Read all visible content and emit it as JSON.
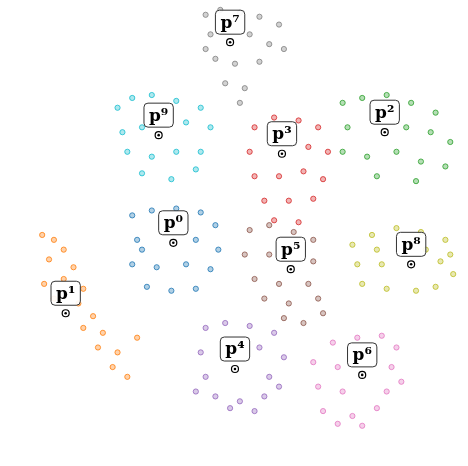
{
  "chart_data": {
    "type": "scatter",
    "xlim": [
      0,
      468
    ],
    "ylim": [
      0,
      466
    ],
    "grid": false,
    "tick_labels": false,
    "marker": "circle",
    "series": [
      {
        "color": "#1f77b4",
        "prototype": {
          "label": "p⁰",
          "x": 172,
          "y": 223
        },
        "points": [
          [
            130,
            251
          ],
          [
            150,
            256
          ],
          [
            175,
            258
          ],
          [
            200,
            254
          ],
          [
            215,
            241
          ],
          [
            135,
            226
          ],
          [
            195,
            226
          ],
          [
            218,
            216
          ],
          [
            130,
            201
          ],
          [
            155,
            198
          ],
          [
            185,
            201
          ],
          [
            210,
            196
          ],
          [
            145,
            178
          ],
          [
            170,
            174
          ],
          [
            195,
            176
          ],
          [
            140,
            216
          ]
        ]
      },
      {
        "color": "#ff7f0e",
        "prototype": {
          "label": "p¹",
          "x": 62,
          "y": 151
        },
        "points": [
          [
            38,
            231
          ],
          [
            50,
            226
          ],
          [
            60,
            216
          ],
          [
            45,
            206
          ],
          [
            70,
            198
          ],
          [
            60,
            186
          ],
          [
            80,
            176
          ],
          [
            50,
            166
          ],
          [
            75,
            161
          ],
          [
            90,
            148
          ],
          [
            80,
            136
          ],
          [
            100,
            131
          ],
          [
            95,
            116
          ],
          [
            115,
            111
          ],
          [
            110,
            96
          ],
          [
            125,
            86
          ],
          [
            135,
            126
          ],
          [
            40,
            181
          ]
        ]
      },
      {
        "color": "#2ca02c",
        "prototype": {
          "label": "p²",
          "x": 388,
          "y": 336
        },
        "points": [
          [
            345,
            366
          ],
          [
            365,
            371
          ],
          [
            390,
            374
          ],
          [
            415,
            366
          ],
          [
            440,
            356
          ],
          [
            350,
            341
          ],
          [
            410,
            341
          ],
          [
            435,
            336
          ],
          [
            455,
            326
          ],
          [
            345,
            316
          ],
          [
            370,
            311
          ],
          [
            400,
            316
          ],
          [
            425,
            306
          ],
          [
            450,
            301
          ],
          [
            380,
            291
          ],
          [
            420,
            286
          ]
        ]
      },
      {
        "color": "#d62728",
        "prototype": {
          "label": "p³",
          "x": 283,
          "y": 314
        },
        "points": [
          [
            255,
            341
          ],
          [
            275,
            351
          ],
          [
            300,
            348
          ],
          [
            320,
            341
          ],
          [
            250,
            316
          ],
          [
            310,
            321
          ],
          [
            330,
            316
          ],
          [
            255,
            291
          ],
          [
            280,
            291
          ],
          [
            305,
            296
          ],
          [
            325,
            288
          ],
          [
            265,
            266
          ],
          [
            290,
            266
          ],
          [
            315,
            268
          ],
          [
            275,
            246
          ],
          [
            300,
            244
          ]
        ]
      },
      {
        "color": "#9467bd",
        "prototype": {
          "label": "p⁴",
          "x": 235,
          "y": 94
        },
        "points": [
          [
            205,
            136
          ],
          [
            225,
            141
          ],
          [
            250,
            138
          ],
          [
            275,
            131
          ],
          [
            200,
            111
          ],
          [
            260,
            116
          ],
          [
            285,
            106
          ],
          [
            205,
            86
          ],
          [
            270,
            86
          ],
          [
            215,
            66
          ],
          [
            240,
            61
          ],
          [
            265,
            66
          ],
          [
            230,
            54
          ],
          [
            255,
            51
          ],
          [
            195,
            71
          ],
          [
            280,
            76
          ]
        ]
      },
      {
        "color": "#8c564b",
        "prototype": {
          "label": "p⁵",
          "x": 292,
          "y": 196
        },
        "points": [
          [
            250,
            236
          ],
          [
            270,
            241
          ],
          [
            295,
            234
          ],
          [
            315,
            226
          ],
          [
            245,
            211
          ],
          [
            270,
            211
          ],
          [
            315,
            204
          ],
          [
            255,
            186
          ],
          [
            280,
            181
          ],
          [
            310,
            181
          ],
          [
            265,
            166
          ],
          [
            290,
            161
          ],
          [
            320,
            166
          ],
          [
            285,
            146
          ],
          [
            305,
            141
          ],
          [
            325,
            151
          ]
        ]
      },
      {
        "color": "#e377c2",
        "prototype": {
          "label": "p⁶",
          "x": 365,
          "y": 88
        },
        "points": [
          [
            335,
            121
          ],
          [
            360,
            126
          ],
          [
            385,
            128
          ],
          [
            400,
            116
          ],
          [
            315,
            101
          ],
          [
            340,
            96
          ],
          [
            395,
            96
          ],
          [
            320,
            76
          ],
          [
            345,
            71
          ],
          [
            390,
            71
          ],
          [
            405,
            81
          ],
          [
            325,
            51
          ],
          [
            355,
            46
          ],
          [
            380,
            54
          ],
          [
            340,
            38
          ],
          [
            365,
            36
          ]
        ]
      },
      {
        "color": "#7f7f7f",
        "prototype": {
          "label": "p⁷",
          "x": 230,
          "y": 428
        },
        "points": [
          [
            205,
            456
          ],
          [
            220,
            461
          ],
          [
            240,
            458
          ],
          [
            260,
            454
          ],
          [
            280,
            446
          ],
          [
            210,
            436
          ],
          [
            250,
            436
          ],
          [
            270,
            426
          ],
          [
            215,
            411
          ],
          [
            235,
            406
          ],
          [
            260,
            408
          ],
          [
            285,
            421
          ],
          [
            225,
            386
          ],
          [
            245,
            381
          ],
          [
            240,
            366
          ],
          [
            205,
            421
          ]
        ]
      },
      {
        "color": "#bcbd22",
        "prototype": {
          "label": "p⁸",
          "x": 415,
          "y": 201
        },
        "points": [
          [
            355,
            221
          ],
          [
            375,
            231
          ],
          [
            400,
            238
          ],
          [
            425,
            234
          ],
          [
            450,
            226
          ],
          [
            360,
            201
          ],
          [
            385,
            201
          ],
          [
            445,
            204
          ],
          [
            458,
            191
          ],
          [
            365,
            181
          ],
          [
            390,
            176
          ],
          [
            420,
            174
          ],
          [
            440,
            178
          ],
          [
            380,
            216
          ],
          [
            430,
            216
          ],
          [
            455,
            211
          ]
        ]
      },
      {
        "color": "#17becf",
        "prototype": {
          "label": "p⁹",
          "x": 157,
          "y": 333
        },
        "points": [
          [
            115,
            361
          ],
          [
            130,
            371
          ],
          [
            150,
            374
          ],
          [
            175,
            368
          ],
          [
            200,
            361
          ],
          [
            120,
            336
          ],
          [
            140,
            341
          ],
          [
            185,
            346
          ],
          [
            210,
            341
          ],
          [
            125,
            316
          ],
          [
            150,
            311
          ],
          [
            175,
            316
          ],
          [
            200,
            316
          ],
          [
            140,
            294
          ],
          [
            170,
            288
          ],
          [
            195,
            298
          ]
        ]
      }
    ]
  }
}
